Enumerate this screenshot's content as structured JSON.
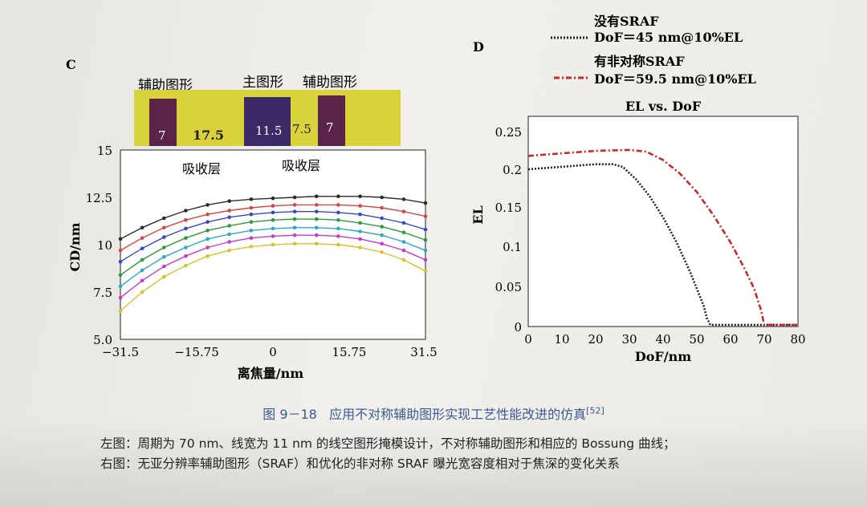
{
  "chart_data": [
    {
      "panel_label": "C",
      "type": "line",
      "xlabel": "离焦量/nm",
      "ylabel": "CD/nm",
      "xlim": [
        -31.5,
        31.5
      ],
      "ylim": [
        5.0,
        15
      ],
      "xticks": [
        "−31.5",
        "−15.75",
        "0",
        "15.75",
        "31.5"
      ],
      "yticks": [
        "5.0",
        "7.5",
        "10",
        "12.5",
        "15"
      ],
      "mask_labels": {
        "sraf_left": "辅助图形",
        "main": "主图形",
        "sraf_right": "辅助图形"
      },
      "mask_widths": [
        "7",
        "17.5",
        "11.5",
        "7.5",
        "7"
      ],
      "absorber_labels": [
        "吸收层",
        "吸收层"
      ],
      "x": [
        -31.5,
        -27,
        -22.5,
        -18,
        -13.5,
        -9,
        -4.5,
        0,
        4.5,
        9,
        13.5,
        18,
        22.5,
        27,
        31.5
      ],
      "series": [
        {
          "color": "#2b2b2b",
          "values": [
            10.3,
            10.9,
            11.4,
            11.8,
            12.1,
            12.3,
            12.4,
            12.45,
            12.5,
            12.55,
            12.55,
            12.55,
            12.5,
            12.4,
            12.2
          ]
        },
        {
          "color": "#d64545",
          "values": [
            9.7,
            10.35,
            10.9,
            11.3,
            11.6,
            11.8,
            11.95,
            12.05,
            12.1,
            12.1,
            12.1,
            12.05,
            11.95,
            11.75,
            11.5
          ]
        },
        {
          "color": "#3a46c8",
          "values": [
            9.1,
            9.8,
            10.4,
            10.85,
            11.2,
            11.45,
            11.6,
            11.7,
            11.75,
            11.75,
            11.7,
            11.6,
            11.4,
            11.15,
            10.8
          ]
        },
        {
          "color": "#2f9a3c",
          "values": [
            8.4,
            9.2,
            9.85,
            10.35,
            10.75,
            11.0,
            11.2,
            11.3,
            11.35,
            11.35,
            11.3,
            11.15,
            10.95,
            10.65,
            10.25
          ]
        },
        {
          "color": "#2aa7c9",
          "values": [
            7.8,
            8.65,
            9.35,
            9.85,
            10.3,
            10.55,
            10.75,
            10.85,
            10.9,
            10.9,
            10.85,
            10.7,
            10.5,
            10.15,
            9.7
          ]
        },
        {
          "color": "#c63cc8",
          "values": [
            7.2,
            8.1,
            8.85,
            9.4,
            9.85,
            10.15,
            10.35,
            10.45,
            10.5,
            10.5,
            10.45,
            10.3,
            10.05,
            9.7,
            9.2
          ]
        },
        {
          "color": "#d8c22a",
          "values": [
            6.5,
            7.5,
            8.3,
            8.9,
            9.4,
            9.7,
            9.9,
            10.0,
            10.05,
            10.05,
            10.0,
            9.85,
            9.6,
            9.2,
            8.6
          ]
        }
      ]
    },
    {
      "panel_label": "D",
      "type": "line",
      "title": "EL vs. DoF",
      "xlabel": "DoF/nm",
      "ylabel": "EL",
      "xlim": [
        0,
        80
      ],
      "ylim": [
        0,
        0.25
      ],
      "xticks": [
        "0",
        "10",
        "20",
        "30",
        "40",
        "50",
        "60",
        "70",
        "80"
      ],
      "yticks": [
        "0",
        "0.05",
        "0.1",
        "0.15",
        "0.2",
        "0.25"
      ],
      "series": [
        {
          "name": "没有SRAF",
          "sub": "DoF＝45 nm@10%EL",
          "color": "#222222",
          "dash": "2,2",
          "x": [
            0,
            10,
            20,
            25,
            28,
            32,
            36,
            40,
            44,
            48,
            50,
            52,
            53,
            54,
            80
          ],
          "values": [
            0.187,
            0.19,
            0.193,
            0.193,
            0.19,
            0.175,
            0.155,
            0.13,
            0.1,
            0.065,
            0.045,
            0.025,
            0.01,
            0.002,
            0.002
          ]
        },
        {
          "name": "有非对称SRAF",
          "sub": "DoF＝59.5 nm@10%EL",
          "color": "#c42a2a",
          "dash": "7,3,2,3",
          "x": [
            0,
            10,
            20,
            30,
            35,
            40,
            45,
            50,
            55,
            60,
            64,
            67,
            69,
            70,
            80
          ],
          "values": [
            0.203,
            0.206,
            0.209,
            0.21,
            0.208,
            0.198,
            0.182,
            0.16,
            0.132,
            0.1,
            0.07,
            0.045,
            0.02,
            0.002,
            0.002
          ]
        }
      ]
    }
  ],
  "caption": {
    "number": "图 9－18",
    "text": "应用不对称辅助图形实现工艺性能改进的仿真",
    "ref": "[52]"
  },
  "notes": [
    "左图：周期为 70 nm、线宽为 11 nm 的线空图形掩模设计，不对称辅助图形和相应的 Bossung 曲线；",
    "右图：无亚分辨率辅助图形（SRAF）和优化的非对称 SRAF 曝光宽容度相对于焦深的变化关系"
  ]
}
